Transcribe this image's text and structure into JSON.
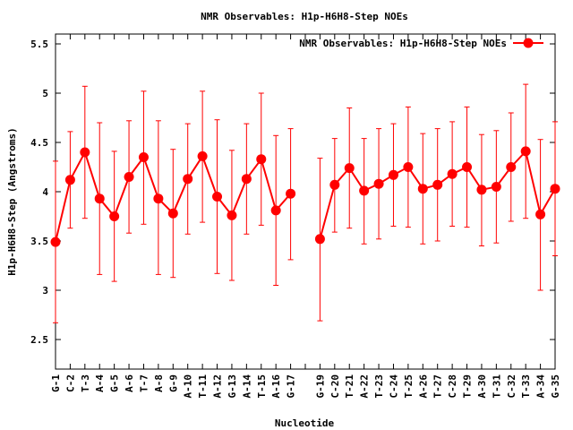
{
  "chart_data": {
    "type": "line",
    "title": "NMR Observables: H1p-H6H8-Step NOEs",
    "xlabel": "Nucleotide",
    "ylabel": "H1p-H6H8-Step (Angstroms)",
    "ylim": [
      2.2,
      5.6
    ],
    "yticks": [
      2.5,
      3,
      3.5,
      4,
      4.5,
      5,
      5.5
    ],
    "grid": false,
    "legend_position": "top-right",
    "color": "#ff0000",
    "categories": [
      "G-1",
      "C-2",
      "T-3",
      "A-4",
      "G-5",
      "A-6",
      "T-7",
      "A-8",
      "G-9",
      "A-10",
      "T-11",
      "A-12",
      "G-13",
      "A-14",
      "T-15",
      "A-16",
      "G-17",
      "",
      "G-19",
      "C-20",
      "T-21",
      "A-22",
      "T-23",
      "C-24",
      "T-25",
      "A-26",
      "T-27",
      "C-28",
      "T-29",
      "A-30",
      "T-31",
      "C-32",
      "T-33",
      "A-34",
      "G-35"
    ],
    "series": [
      {
        "name": "NMR Observables: H1p-H6H8-Step NOEs",
        "values": [
          3.49,
          4.12,
          4.4,
          3.93,
          3.75,
          4.15,
          4.35,
          3.93,
          3.78,
          4.13,
          4.36,
          3.95,
          3.76,
          4.13,
          4.33,
          3.81,
          3.98,
          null,
          3.52,
          4.07,
          4.24,
          4.01,
          4.08,
          4.17,
          4.25,
          4.03,
          4.07,
          4.18,
          4.25,
          4.02,
          4.05,
          4.25,
          4.41,
          3.77,
          4.03
        ],
        "err_low": [
          2.67,
          3.63,
          3.73,
          3.16,
          3.09,
          3.58,
          3.67,
          3.16,
          3.13,
          3.57,
          3.69,
          3.17,
          3.1,
          3.57,
          3.66,
          3.05,
          3.31,
          null,
          2.69,
          3.59,
          3.63,
          3.47,
          3.52,
          3.65,
          3.64,
          3.47,
          3.5,
          3.65,
          3.64,
          3.45,
          3.48,
          3.7,
          3.73,
          3.0,
          3.35
        ],
        "err_high": [
          4.31,
          4.61,
          5.07,
          4.7,
          4.41,
          4.72,
          5.02,
          4.72,
          4.43,
          4.69,
          5.02,
          4.73,
          4.42,
          4.69,
          5.0,
          4.57,
          4.64,
          null,
          4.34,
          4.54,
          4.85,
          4.54,
          4.64,
          4.69,
          4.86,
          4.59,
          4.64,
          4.71,
          4.86,
          4.58,
          4.62,
          4.8,
          5.09,
          4.53,
          4.71
        ]
      }
    ]
  }
}
